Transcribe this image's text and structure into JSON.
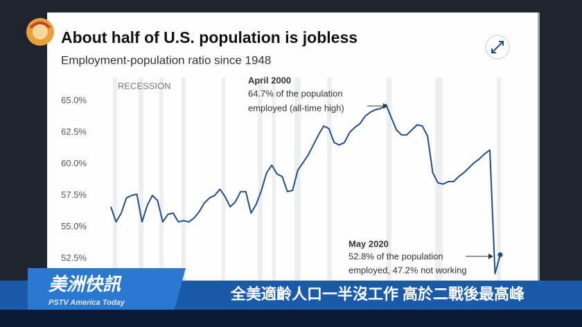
{
  "chart_data": {
    "type": "line",
    "title": "About half of U.S. population is jobless",
    "subtitle": "Employment-population ratio since 1948",
    "shading_label": "RECESSION",
    "annotations": [
      {
        "title": "April 2000",
        "lines": [
          "64.7% of the population",
          "employed (all-time high)"
        ]
      },
      {
        "title": "May 2020",
        "lines": [
          "52.8% of the population",
          "employed, 47.2% not working"
        ]
      }
    ],
    "color": "#1f4e86",
    "values": [
      56.6,
      55.4,
      56.1,
      57.3,
      57.5,
      57.6,
      55.4,
      56.7,
      57.5,
      57.1,
      55.4,
      56.0,
      56.1,
      55.4,
      55.5,
      55.4,
      55.7,
      56.2,
      56.9,
      57.3,
      57.5,
      58.0,
      57.4,
      56.6,
      57.0,
      57.8,
      57.8,
      56.1,
      56.8,
      57.9,
      59.3,
      59.9,
      59.2,
      59.0,
      57.8,
      57.9,
      59.5,
      60.1,
      60.7,
      61.5,
      62.3,
      63.0,
      62.8,
      61.7,
      61.5,
      61.7,
      62.5,
      62.9,
      63.2,
      63.8,
      64.1,
      64.3,
      64.4,
      64.7,
      63.7,
      62.7,
      62.3,
      62.3,
      62.7,
      63.1,
      63.0,
      62.2,
      59.3,
      58.5,
      58.4,
      58.6,
      58.6,
      59.0,
      59.3,
      59.7,
      60.1,
      60.4,
      60.8,
      61.1,
      51.3,
      52.8
    ],
    "ylim": [
      48.5,
      67.5
    ],
    "yticks": [
      {
        "value": 52.5,
        "label": "52.5%"
      },
      {
        "value": 55,
        "label": "55.0%"
      },
      {
        "value": 57.5,
        "label": "57.5%"
      },
      {
        "value": 60,
        "label": "60.0%"
      },
      {
        "value": 62.5,
        "label": "62.5%"
      },
      {
        "value": 65,
        "label": "65.0%"
      }
    ],
    "grid": false
  },
  "overlay": {
    "program": "美洲快訊",
    "program_sub": "PSTV America Today",
    "headline": "全美適齡人口一半沒工作 高於二戰後最高峰"
  }
}
